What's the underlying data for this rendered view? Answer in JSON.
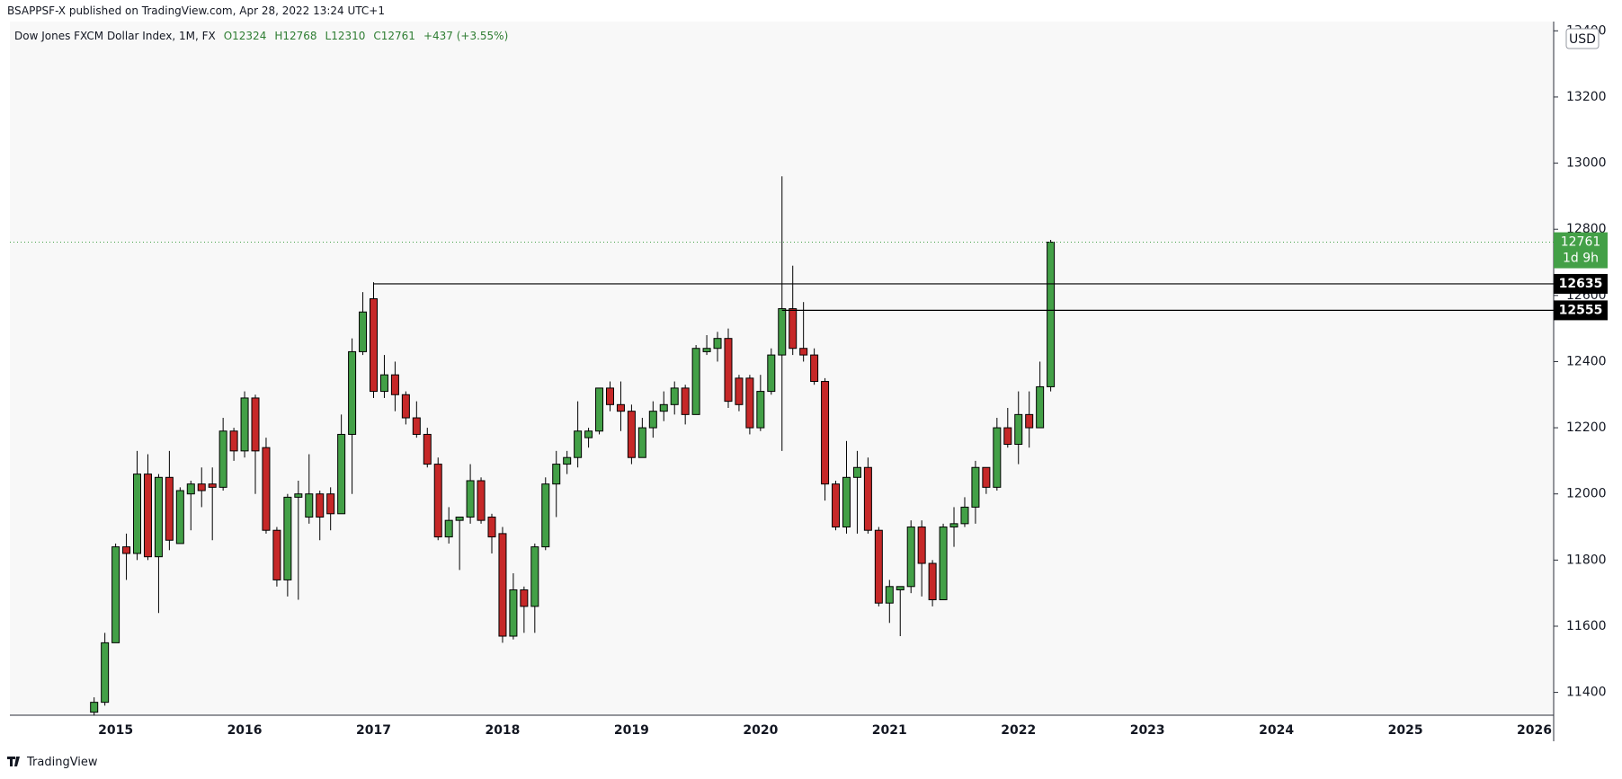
{
  "publisher": "BSAPPSF-X published on TradingView.com, Apr 28, 2022 13:24 UTC+1",
  "brand": "TradingView",
  "chart_data": {
    "type": "candlestick",
    "title": "Dow Jones FXCM Dollar Index, 1M, FX",
    "ohlc_legend": [
      "O12324",
      "H12768",
      "L12310",
      "C12761",
      "+437 (+3.55%)"
    ],
    "currency": "USD",
    "countdown": "1d 9h",
    "up_color": "#43a047",
    "down_color": "#c62828",
    "levels": [
      12635,
      12555
    ],
    "categories": [
      null,
      null,
      "2015",
      null,
      null,
      null,
      null,
      null,
      null,
      null,
      null,
      null,
      null,
      null,
      "2016",
      null,
      null,
      null,
      null,
      null,
      null,
      null,
      null,
      null,
      null,
      null,
      "2017",
      null,
      null,
      null,
      null,
      null,
      null,
      null,
      null,
      null,
      null,
      null,
      "2018",
      null,
      null,
      null,
      null,
      null,
      null,
      null,
      null,
      null,
      null,
      null,
      "2019",
      null,
      null,
      null,
      null,
      null,
      null,
      null,
      null,
      null,
      null,
      null,
      "2020",
      null,
      null,
      null,
      null,
      null,
      null,
      null,
      null,
      null,
      null,
      null,
      "2021",
      null,
      null,
      null,
      null,
      null,
      null,
      null,
      null,
      null,
      null,
      null,
      "2022",
      null,
      null,
      null,
      null,
      null,
      null,
      null,
      null,
      null,
      null,
      null,
      "2023",
      null,
      null,
      null,
      null,
      null,
      null,
      null,
      null,
      null,
      null,
      null,
      "2024",
      null,
      null,
      null,
      null,
      null,
      null,
      null,
      null,
      null,
      null,
      null,
      "2025",
      null,
      null,
      null,
      null,
      null,
      null,
      null,
      null,
      null,
      null,
      null,
      "2026",
      null
    ],
    "open": [
      11340,
      11370,
      11550,
      11840,
      11820,
      12060,
      11810,
      12050,
      11850,
      12000,
      12030,
      12030,
      12020,
      12190,
      12130,
      12290,
      12140,
      11890,
      11740,
      11990,
      11930,
      12000,
      12000,
      11940,
      12180,
      12430,
      12590,
      12310,
      12360,
      12300,
      12230,
      12180,
      12090,
      11870,
      11920,
      11930,
      12040,
      11930,
      11880,
      11570,
      11710,
      11660,
      11840,
      12030,
      12090,
      12110,
      12170,
      12190,
      12320,
      12270,
      12250,
      12110,
      12200,
      12250,
      12270,
      12320,
      12240,
      12430,
      12440,
      12470,
      12350,
      12350,
      12200,
      12310,
      12420,
      12560,
      12440,
      12420,
      12340,
      12030,
      11900,
      12050,
      12080,
      11890,
      11670,
      11710,
      11720,
      11900,
      11790,
      11680,
      11900,
      11910,
      11960,
      12080,
      12020,
      12200,
      12150,
      12240,
      12200,
      12324,
      null,
      null,
      null,
      null,
      null,
      null,
      null,
      null,
      null,
      null,
      null,
      null,
      null,
      null,
      null,
      null,
      null,
      null,
      null,
      null,
      null,
      null,
      null,
      null,
      null,
      null,
      null,
      null,
      null,
      null,
      null,
      null,
      null,
      null,
      null,
      null,
      null,
      null,
      null,
      null,
      null,
      null,
      null,
      null,
      null,
      null
    ],
    "high": [
      11385,
      11580,
      11850,
      11880,
      12130,
      12120,
      12060,
      12130,
      12020,
      12040,
      12080,
      12080,
      12230,
      12200,
      12310,
      12300,
      12170,
      11900,
      12000,
      12040,
      12120,
      12010,
      12020,
      12240,
      12470,
      12610,
      12640,
      12420,
      12400,
      12310,
      12280,
      12200,
      12110,
      11960,
      11930,
      12090,
      12050,
      11940,
      11900,
      11760,
      11720,
      11850,
      12050,
      12130,
      12130,
      12280,
      12200,
      12320,
      12340,
      12340,
      12270,
      12230,
      12280,
      12310,
      12340,
      12330,
      12450,
      12480,
      12490,
      12500,
      12360,
      12360,
      12360,
      12440,
      12960,
      12690,
      12580,
      12440,
      12350,
      12040,
      12160,
      12130,
      12110,
      11900,
      11740,
      11720,
      11920,
      11920,
      11800,
      11910,
      11960,
      11990,
      12100,
      12080,
      12230,
      12260,
      12310,
      12310,
      12400,
      12768,
      null,
      null,
      null,
      null,
      null,
      null,
      null,
      null,
      null,
      null,
      null,
      null,
      null,
      null,
      null,
      null,
      null,
      null,
      null,
      null,
      null,
      null,
      null,
      null,
      null,
      null,
      null,
      null,
      null,
      null,
      null,
      null,
      null,
      null,
      null,
      null,
      null,
      null,
      null,
      null,
      null,
      null,
      null,
      null,
      null,
      null
    ],
    "low": [
      11330,
      11360,
      11550,
      11740,
      11800,
      11800,
      11640,
      11830,
      11850,
      11890,
      11960,
      11860,
      12010,
      12100,
      12110,
      12000,
      11880,
      11720,
      11690,
      11680,
      11910,
      11860,
      11890,
      11940,
      12000,
      12420,
      12290,
      12290,
      12250,
      12210,
      12170,
      12080,
      11860,
      11850,
      11770,
      11910,
      11910,
      11820,
      11550,
      11560,
      11580,
      11580,
      11830,
      11930,
      12060,
      12080,
      12140,
      12180,
      12250,
      12190,
      12090,
      12110,
      12170,
      12220,
      12240,
      12210,
      12240,
      12420,
      12400,
      12260,
      12250,
      12180,
      12190,
      12300,
      12130,
      12420,
      12400,
      12330,
      11980,
      11890,
      11880,
      11880,
      11880,
      11660,
      11610,
      11570,
      11700,
      11690,
      11660,
      11680,
      11840,
      11900,
      11910,
      12000,
      12010,
      12140,
      12090,
      12140,
      12200,
      12310,
      null,
      null,
      null,
      null,
      null,
      null,
      null,
      null,
      null,
      null,
      null,
      null,
      null,
      null,
      null,
      null,
      null,
      null,
      null,
      null,
      null,
      null,
      null,
      null,
      null,
      null,
      null,
      null,
      null,
      null,
      null,
      null,
      null,
      null,
      null,
      null,
      null,
      null,
      null,
      null,
      null,
      null,
      null,
      null,
      null,
      null
    ],
    "close": [
      11370,
      11550,
      11840,
      11820,
      12060,
      11810,
      12050,
      11860,
      12010,
      12030,
      12010,
      12020,
      12190,
      12130,
      12290,
      12130,
      11890,
      11740,
      11990,
      12000,
      12000,
      11930,
      11940,
      12180,
      12430,
      12550,
      12310,
      12360,
      12300,
      12230,
      12180,
      12090,
      11870,
      11920,
      11930,
      12040,
      11920,
      11870,
      11570,
      11710,
      11660,
      11840,
      12030,
      12090,
      12110,
      12190,
      12190,
      12320,
      12270,
      12250,
      12110,
      12200,
      12250,
      12270,
      12320,
      12240,
      12440,
      12440,
      12470,
      12280,
      12270,
      12200,
      12310,
      12420,
      12560,
      12440,
      12420,
      12340,
      12030,
      11900,
      12050,
      12080,
      11890,
      11670,
      11720,
      11720,
      11900,
      11790,
      11680,
      11900,
      11910,
      11960,
      12080,
      12020,
      12200,
      12150,
      12240,
      12200,
      12324,
      12761,
      null,
      null,
      null,
      null,
      null,
      null,
      null,
      null,
      null,
      null,
      null,
      null,
      null,
      null,
      null,
      null,
      null,
      null,
      null,
      null,
      null,
      null,
      null,
      null,
      null,
      null,
      null,
      null,
      null,
      null,
      null,
      null,
      null,
      null,
      null,
      null,
      null,
      null,
      null,
      null,
      null,
      null,
      null,
      null,
      null,
      null
    ],
    "ylim": [
      11331,
      13428
    ],
    "yticks": [
      11400,
      11600,
      11800,
      12000,
      12200,
      12400,
      12600,
      12800,
      13000,
      13200,
      13400
    ]
  }
}
